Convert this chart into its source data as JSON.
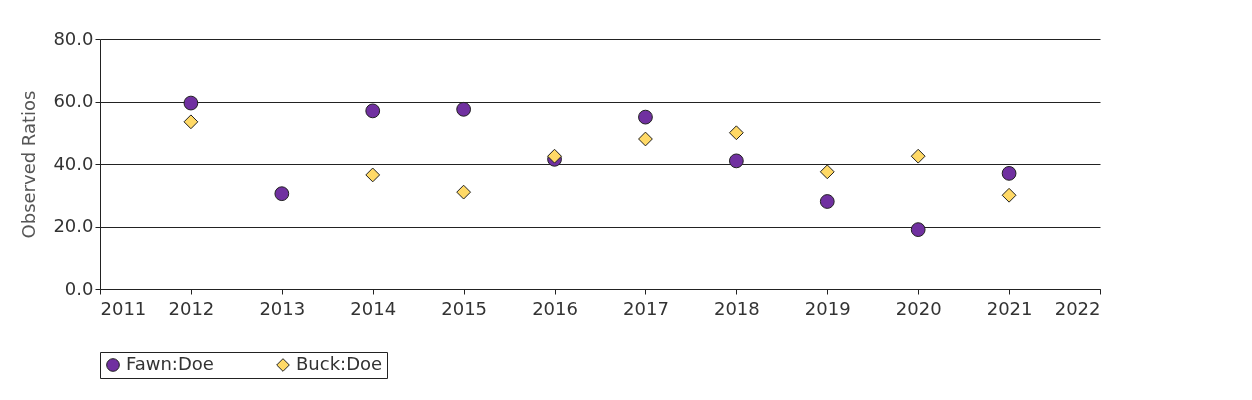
{
  "chart_data": {
    "type": "scatter",
    "ylabel": "Observed Ratios",
    "x": [
      2012,
      2013,
      2014,
      2015,
      2016,
      2017,
      2018,
      2019,
      2020,
      2021
    ],
    "series": [
      {
        "name": "Fawn:Doe",
        "color": "#7030a0",
        "marker": "circle",
        "values": [
          59.5,
          30.5,
          57,
          57.5,
          41.5,
          55,
          41,
          28,
          19,
          37
        ]
      },
      {
        "name": "Buck:Doe",
        "color": "#ffd966",
        "marker": "diamond",
        "values": [
          53.5,
          null,
          36.5,
          31,
          42.5,
          48,
          50,
          37.5,
          42.5,
          30
        ]
      }
    ],
    "xlim": [
      2011,
      2022
    ],
    "xticks": [
      2011,
      2012,
      2013,
      2014,
      2015,
      2016,
      2017,
      2018,
      2019,
      2020,
      2021,
      2022
    ],
    "ylim": [
      0,
      80
    ],
    "yticks": [
      {
        "value": 0,
        "label": "0.0"
      },
      {
        "value": 20,
        "label": "20.0"
      },
      {
        "value": 40,
        "label": "40.0"
      },
      {
        "value": 60,
        "label": "60.0"
      },
      {
        "value": 80,
        "label": "80.0"
      }
    ],
    "grid": "y",
    "legend": "bottom"
  }
}
